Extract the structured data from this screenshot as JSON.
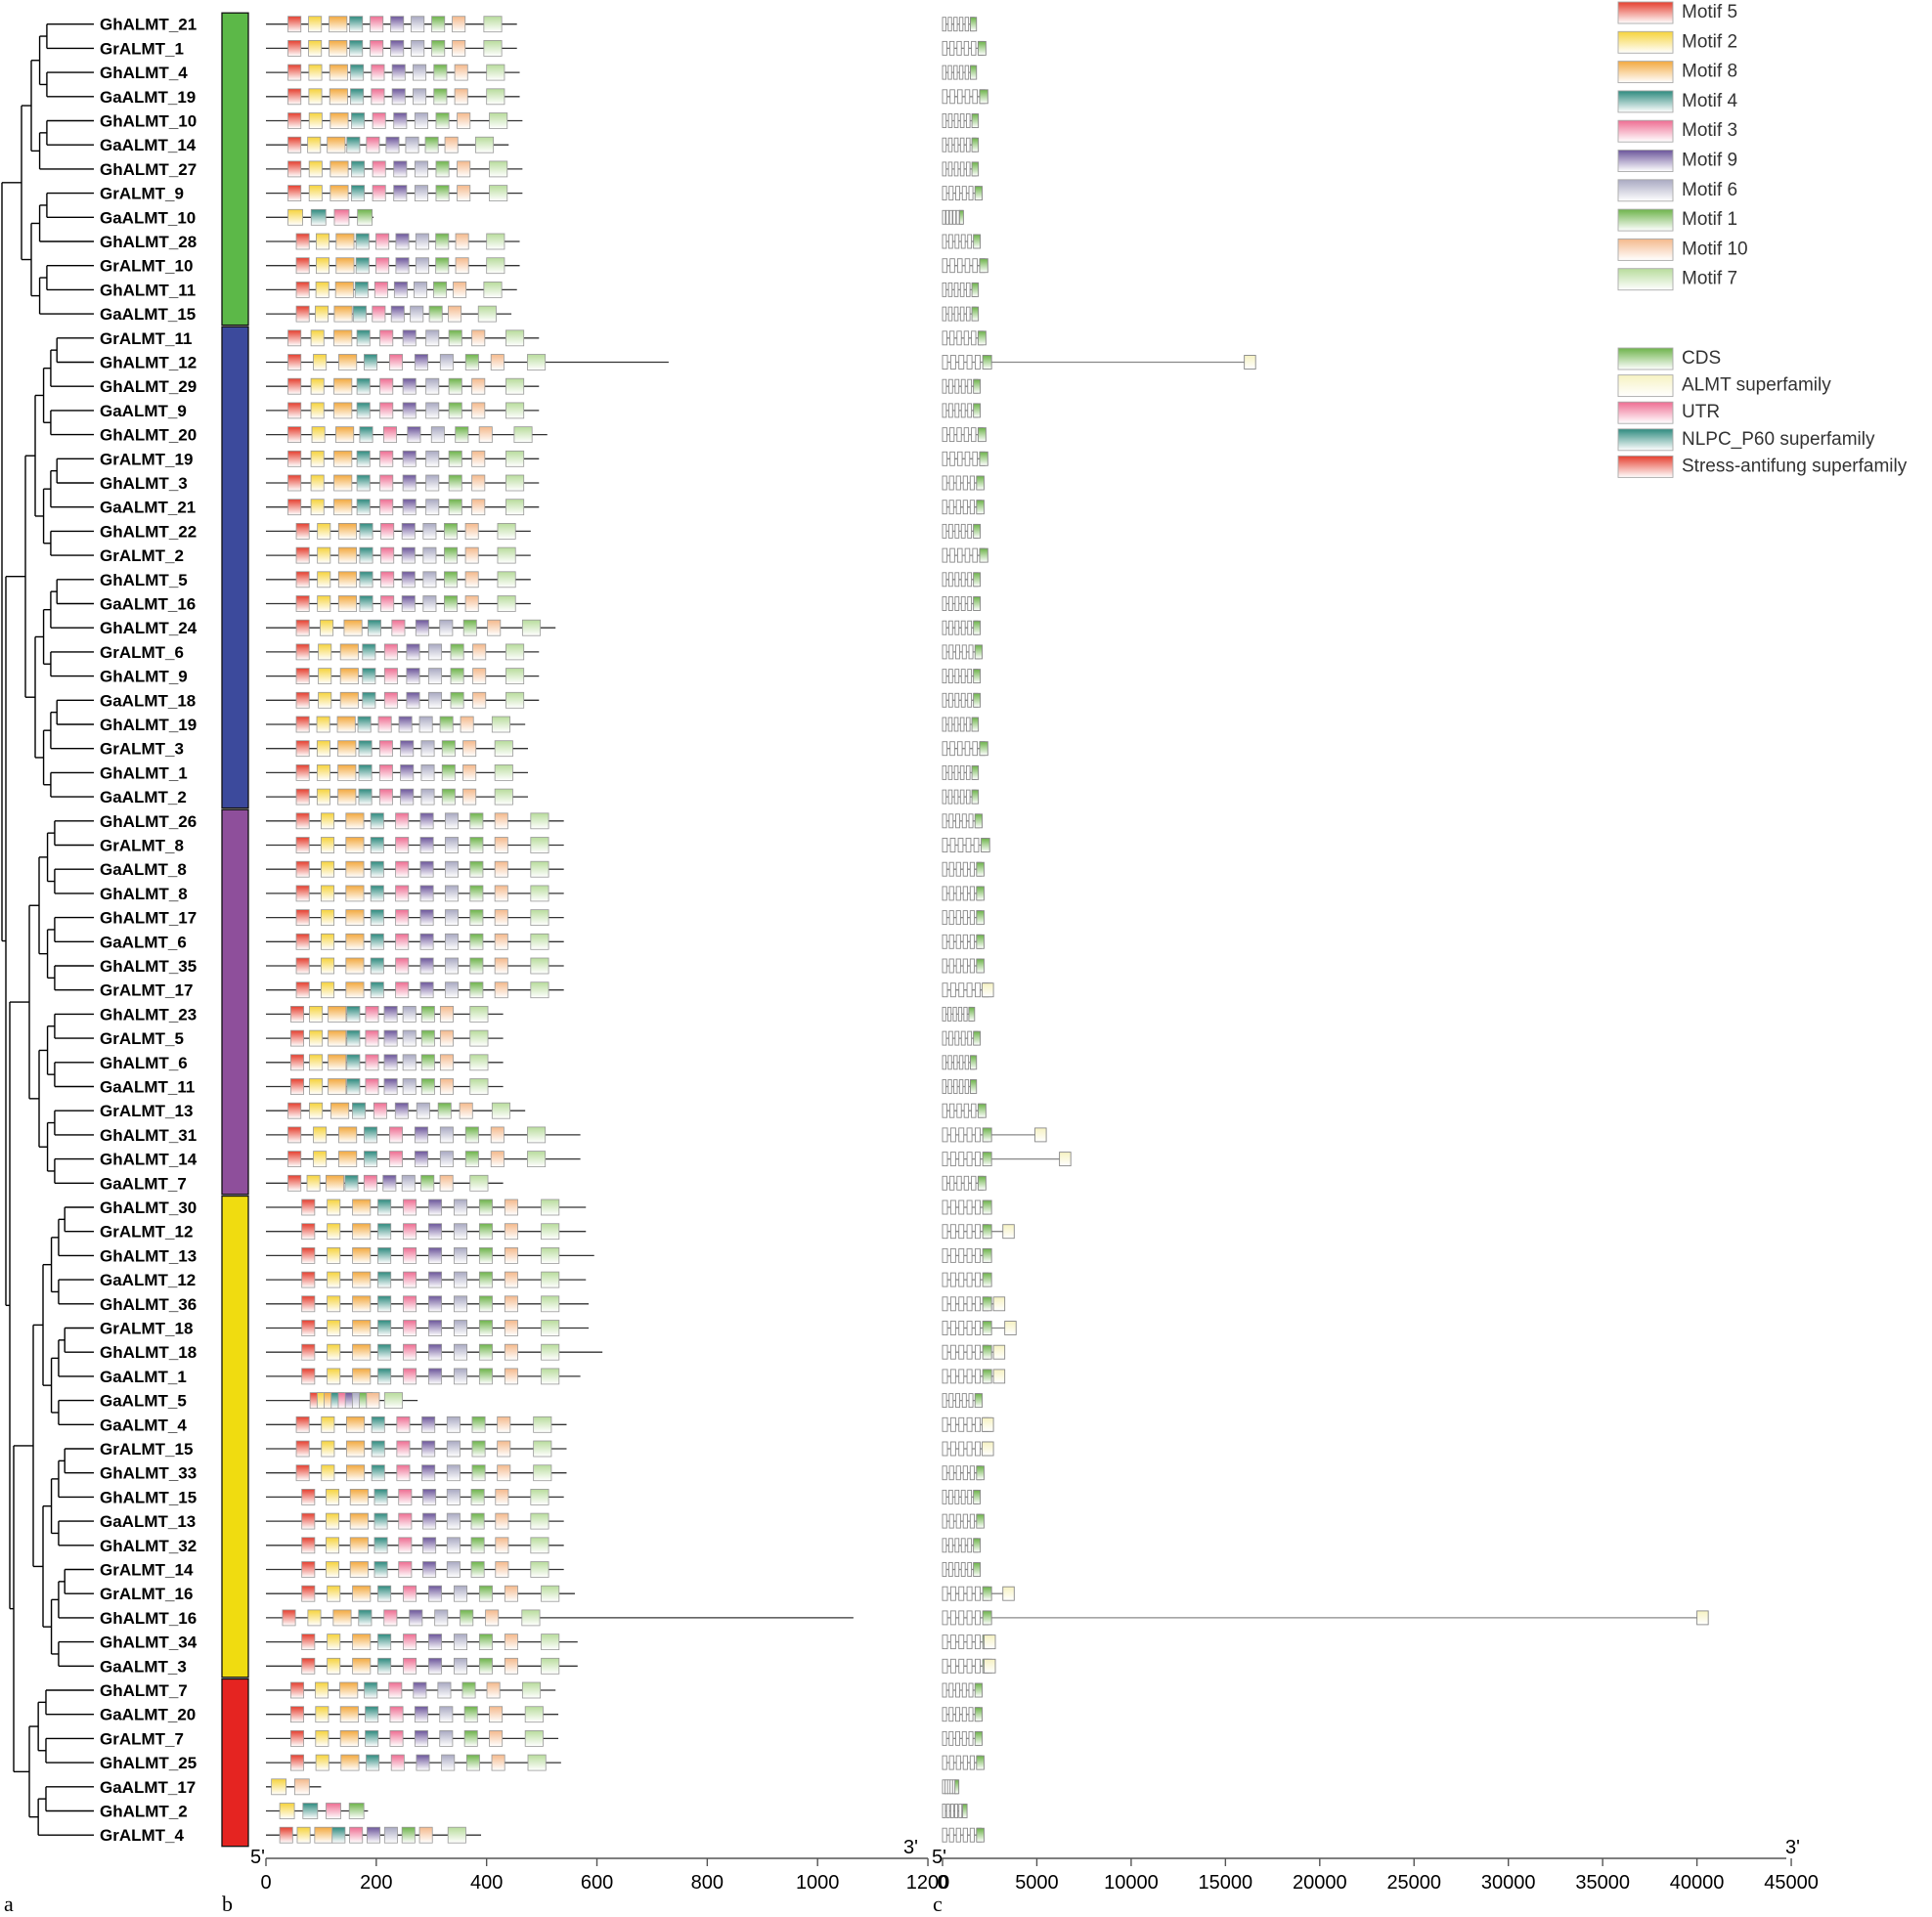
{
  "panel_labels": {
    "a": "a",
    "b": "b",
    "c": "c"
  },
  "genes": [
    "GhALMT_21",
    "GrALMT_1",
    "GhALMT_4",
    "GaALMT_19",
    "GhALMT_10",
    "GaALMT_14",
    "GhALMT_27",
    "GrALMT_9",
    "GaALMT_10",
    "GhALMT_28",
    "GrALMT_10",
    "GhALMT_11",
    "GaALMT_15",
    "GrALMT_11",
    "GhALMT_12",
    "GhALMT_29",
    "GaALMT_9",
    "GhALMT_20",
    "GrALMT_19",
    "GhALMT_3",
    "GaALMT_21",
    "GhALMT_22",
    "GrALMT_2",
    "GhALMT_5",
    "GaALMT_16",
    "GhALMT_24",
    "GrALMT_6",
    "GhALMT_9",
    "GaALMT_18",
    "GhALMT_19",
    "GrALMT_3",
    "GhALMT_1",
    "GaALMT_2",
    "GhALMT_26",
    "GrALMT_8",
    "GaALMT_8",
    "GhALMT_8",
    "GhALMT_17",
    "GaALMT_6",
    "GhALMT_35",
    "GrALMT_17",
    "GhALMT_23",
    "GrALMT_5",
    "GhALMT_6",
    "GaALMT_11",
    "GrALMT_13",
    "GhALMT_31",
    "GhALMT_14",
    "GaALMT_7",
    "GhALMT_30",
    "GrALMT_12",
    "GhALMT_13",
    "GaALMT_12",
    "GhALMT_36",
    "GrALMT_18",
    "GhALMT_18",
    "GaALMT_1",
    "GaALMT_5",
    "GaALMT_4",
    "GrALMT_15",
    "GhALMT_33",
    "GhALMT_15",
    "GaALMT_13",
    "GhALMT_32",
    "GrALMT_14",
    "GrALMT_16",
    "GhALMT_16",
    "GhALMT_34",
    "GaALMT_3",
    "GhALMT_7",
    "GaALMT_20",
    "GrALMT_7",
    "GhALMT_25",
    "GaALMT_17",
    "GhALMT_2",
    "GrALMT_4"
  ],
  "groups": [
    {
      "color": "#5cb848",
      "start": 0,
      "end": 12
    },
    {
      "color": "#3c4a9c",
      "start": 13,
      "end": 32
    },
    {
      "color": "#8e4f9b",
      "start": 33,
      "end": 48
    },
    {
      "color": "#f0dc10",
      "start": 49,
      "end": 68
    },
    {
      "color": "#e52421",
      "start": 69,
      "end": 75
    }
  ],
  "motif_legend": [
    {
      "name": "Motif 5",
      "color": "#e53e2e"
    },
    {
      "name": "Motif 2",
      "color": "#f6d33c"
    },
    {
      "name": "Motif 8",
      "color": "#f3a93f"
    },
    {
      "name": "Motif 4",
      "color": "#2d8a7e"
    },
    {
      "name": "Motif 3",
      "color": "#ee6d92"
    },
    {
      "name": "Motif 9",
      "color": "#6b559a"
    },
    {
      "name": "Motif 6",
      "color": "#a9a9c2"
    },
    {
      "name": "Motif 1",
      "color": "#6db34a"
    },
    {
      "name": "Motif 10",
      "color": "#f4b98c"
    },
    {
      "name": "Motif 7",
      "color": "#b8dc9c"
    }
  ],
  "structure_legend": [
    {
      "name": "CDS",
      "color": "#6db34a"
    },
    {
      "name": "ALMT superfamily",
      "color": "#f6f2c2"
    },
    {
      "name": "UTR",
      "color": "#ee6d92"
    },
    {
      "name": "NLPC_P60 superfamily",
      "color": "#2d8a7e"
    },
    {
      "name": "Stress-antifung superfamily",
      "color": "#e53e2e"
    }
  ],
  "protein_axis": {
    "ticks": [
      0,
      200,
      400,
      600,
      800,
      1000,
      1200
    ],
    "start_label": "5'",
    "end_label": "3'"
  },
  "gene_axis": {
    "ticks": [
      0,
      5000,
      10000,
      15000,
      20000,
      25000,
      30000,
      35000,
      40000,
      45000
    ],
    "start_label": "5'",
    "end_label": "3'"
  }
}
